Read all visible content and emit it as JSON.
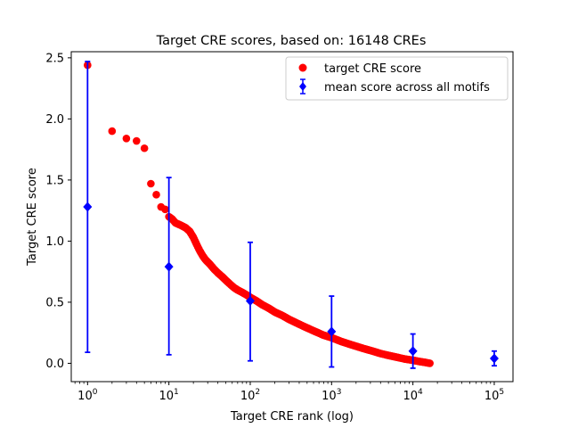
{
  "chart_data": {
    "type": "scatter",
    "title": "Target CRE scores, based on: 16148 CREs",
    "xlabel": "Target CRE rank (log)",
    "ylabel": "Target CRE score",
    "xscale": "log",
    "xlim": [
      0.63,
      170000
    ],
    "ylim": [
      -0.15,
      2.55
    ],
    "x_ticks": [
      {
        "value": 1,
        "base": "10",
        "exp": "0"
      },
      {
        "value": 10,
        "base": "10",
        "exp": "1"
      },
      {
        "value": 100,
        "base": "10",
        "exp": "2"
      },
      {
        "value": 1000,
        "base": "10",
        "exp": "3"
      },
      {
        "value": 10000,
        "base": "10",
        "exp": "4"
      },
      {
        "value": 100000,
        "base": "10",
        "exp": "5"
      }
    ],
    "y_ticks": [
      {
        "value": 0.0,
        "label": "0.0"
      },
      {
        "value": 0.5,
        "label": "0.5"
      },
      {
        "value": 1.0,
        "label": "1.0"
      },
      {
        "value": 1.5,
        "label": "1.5"
      },
      {
        "value": 2.0,
        "label": "2.0"
      },
      {
        "value": 2.5,
        "label": "2.5"
      }
    ],
    "grid": false,
    "legend_position": "top-right",
    "series": [
      {
        "name": "target CRE score",
        "marker": "circle",
        "color": "#ff0000",
        "points": [
          [
            1,
            2.44
          ],
          [
            2,
            1.9
          ],
          [
            3,
            1.84
          ],
          [
            4,
            1.82
          ],
          [
            5,
            1.76
          ],
          [
            6,
            1.47
          ],
          [
            7,
            1.38
          ],
          [
            8,
            1.28
          ],
          [
            9,
            1.26
          ],
          [
            10,
            1.2
          ],
          [
            11,
            1.18
          ],
          [
            12,
            1.15
          ],
          [
            14,
            1.13
          ],
          [
            16,
            1.11
          ],
          [
            18,
            1.08
          ],
          [
            20,
            1.03
          ],
          [
            22,
            0.97
          ],
          [
            24,
            0.92
          ],
          [
            26,
            0.88
          ],
          [
            28,
            0.85
          ],
          [
            32,
            0.81
          ],
          [
            36,
            0.77
          ],
          [
            40,
            0.74
          ],
          [
            45,
            0.71
          ],
          [
            50,
            0.68
          ],
          [
            56,
            0.65
          ],
          [
            63,
            0.62
          ],
          [
            70,
            0.6
          ],
          [
            80,
            0.58
          ],
          [
            90,
            0.56
          ],
          [
            100,
            0.54
          ],
          [
            120,
            0.51
          ],
          [
            140,
            0.48
          ],
          [
            170,
            0.45
          ],
          [
            200,
            0.42
          ],
          [
            250,
            0.39
          ],
          [
            300,
            0.36
          ],
          [
            400,
            0.32
          ],
          [
            500,
            0.29
          ],
          [
            630,
            0.26
          ],
          [
            800,
            0.23
          ],
          [
            1000,
            0.21
          ],
          [
            1300,
            0.18
          ],
          [
            1600,
            0.16
          ],
          [
            2000,
            0.14
          ],
          [
            2500,
            0.12
          ],
          [
            3200,
            0.1
          ],
          [
            4000,
            0.08
          ],
          [
            5000,
            0.065
          ],
          [
            6300,
            0.05
          ],
          [
            8000,
            0.035
          ],
          [
            10000,
            0.025
          ],
          [
            12000,
            0.015
          ],
          [
            14000,
            0.008
          ],
          [
            16148,
            0.0
          ]
        ]
      },
      {
        "name": "mean score across all motifs",
        "marker": "diamond",
        "color": "#0000ff",
        "points": [
          {
            "x": 1,
            "y": 1.28,
            "low": 0.09,
            "high": 2.47
          },
          {
            "x": 10,
            "y": 0.79,
            "low": 0.07,
            "high": 1.52
          },
          {
            "x": 100,
            "y": 0.51,
            "low": 0.02,
            "high": 0.99
          },
          {
            "x": 1000,
            "y": 0.26,
            "low": -0.03,
            "high": 0.55
          },
          {
            "x": 10000,
            "y": 0.1,
            "low": -0.04,
            "high": 0.24
          },
          {
            "x": 100000,
            "y": 0.04,
            "low": -0.02,
            "high": 0.1
          }
        ]
      }
    ]
  }
}
